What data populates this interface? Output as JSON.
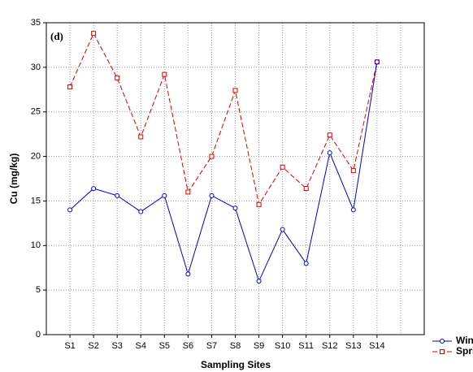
{
  "chart_data": {
    "type": "line",
    "annotation": "(d)",
    "x_label": "Sampling Sites",
    "y_label": "Cu (mg/kg)",
    "categories": [
      "S1",
      "S2",
      "S3",
      "S4",
      "S5",
      "S6",
      "S7",
      "S8",
      "S9",
      "S10",
      "S11",
      "S12",
      "S13",
      "S14"
    ],
    "series": [
      {
        "name": "Winter",
        "color": "#0000cc",
        "marker": "circle",
        "dash": false,
        "values": [
          14,
          16.4,
          15.6,
          13.8,
          15.6,
          6.8,
          15.6,
          14.2,
          6,
          11.8,
          8,
          20.4,
          14,
          30.6
        ]
      },
      {
        "name": "Spring",
        "color": "#dd0000",
        "marker": "square",
        "dash": true,
        "values": [
          27.8,
          33.8,
          28.8,
          22.2,
          29.2,
          16,
          20,
          27.4,
          14.6,
          18.8,
          16.4,
          22.4,
          18.4,
          30.6
        ]
      }
    ],
    "ylim": [
      0,
      35
    ],
    "yticks": [
      0,
      5,
      10,
      15,
      20,
      25,
      30,
      35
    ],
    "grid": true,
    "legend": "bottom-right"
  }
}
